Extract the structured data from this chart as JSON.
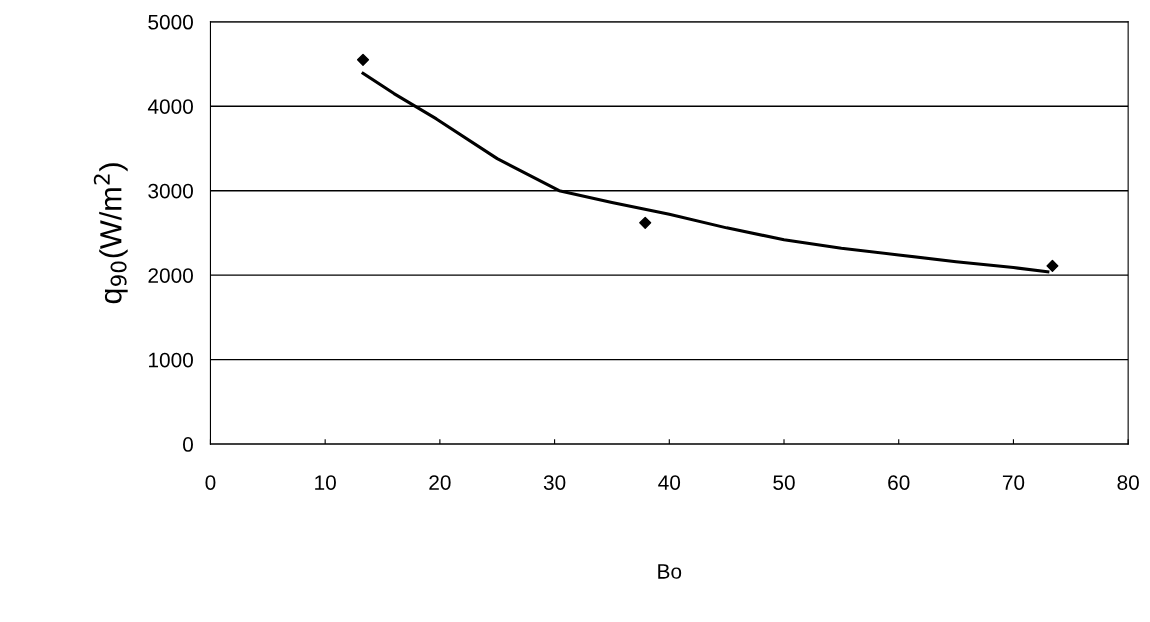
{
  "chart_data": {
    "type": "scatter",
    "xlabel": "Bo",
    "ylabel": "q$_{90}$(W/m$^{2}$)",
    "xlim": [
      0,
      80
    ],
    "xticks": [
      0,
      10,
      20,
      30,
      40,
      50,
      60,
      70,
      80
    ],
    "ylim": [
      0,
      5000
    ],
    "yticks": [
      0,
      1000,
      2000,
      3000,
      4000,
      5000
    ],
    "grid": "y",
    "series": [
      {
        "color": "#000000",
        "marker": "diamond",
        "x": [
          13.3,
          37.9,
          73.4
        ],
        "values": [
          4550,
          2620,
          2110
        ]
      },
      {
        "type": "line",
        "color": "#000000",
        "marker": "none",
        "line_style": "solid",
        "x": [
          13.3,
          16,
          19.7,
          25,
          30.4,
          35,
          40,
          45,
          50,
          55,
          60,
          65,
          70,
          73
        ],
        "values": [
          4390,
          4150,
          3850,
          3380,
          3000,
          2860,
          2720,
          2560,
          2420,
          2320,
          2240,
          2160,
          2090,
          2040
        ]
      }
    ]
  }
}
